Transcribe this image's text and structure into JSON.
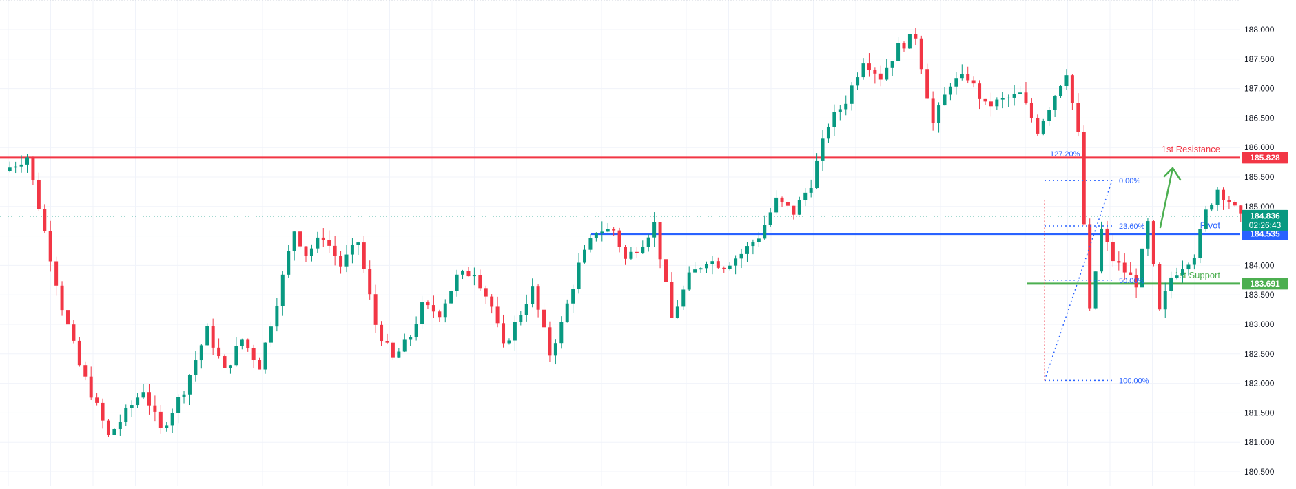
{
  "chart_data": {
    "type": "candlestick",
    "y_axis": {
      "ticks": [
        "188.000",
        "187.500",
        "187.000",
        "186.500",
        "186.000",
        "185.500",
        "185.000",
        "184.500",
        "184.000",
        "183.500",
        "183.000",
        "182.500",
        "182.000",
        "181.500",
        "181.000",
        "180.500"
      ],
      "tick_values": [
        188.0,
        187.5,
        187.0,
        186.5,
        186.0,
        185.5,
        185.0,
        184.5,
        184.0,
        183.5,
        183.0,
        182.5,
        182.0,
        181.5,
        181.0,
        180.5
      ],
      "ylim": [
        180.35,
        188.25
      ],
      "position": "right"
    },
    "grid": true,
    "levels": [
      {
        "name": "resistance",
        "label": "1st Resistance",
        "value": 185.828,
        "value_text": "185.828",
        "color": "#f23645"
      },
      {
        "name": "pivot",
        "label": "Pivot",
        "value": 184.535,
        "value_text": "184.535",
        "color": "#2962ff"
      },
      {
        "name": "support",
        "label": "1st Support",
        "value": 183.691,
        "value_text": "183.691",
        "color": "#4caf50"
      }
    ],
    "current_price": {
      "value": 184.836,
      "value_text": "184.836",
      "countdown": "02:26:43",
      "color": "#089981"
    },
    "fibonacci": [
      {
        "label": "127.20%",
        "value": 185.9
      },
      {
        "label": "0.00%",
        "value": 185.44
      },
      {
        "label": "23.60%",
        "value": 184.67
      },
      {
        "label": "50.00%",
        "value": 183.75
      },
      {
        "label": "100.00%",
        "value": 182.05
      }
    ],
    "candle_colors": {
      "up": "#089981",
      "down": "#f23645"
    },
    "price_path_anchors": [
      [
        0,
        185.6
      ],
      [
        4,
        185.85
      ],
      [
        6,
        185.0
      ],
      [
        10,
        183.3
      ],
      [
        13,
        182.3
      ],
      [
        16,
        181.6
      ],
      [
        18,
        181.1
      ],
      [
        21,
        181.5
      ],
      [
        24,
        181.9
      ],
      [
        27,
        181.2
      ],
      [
        31,
        181.9
      ],
      [
        35,
        182.9
      ],
      [
        38,
        182.2
      ],
      [
        41,
        182.75
      ],
      [
        44,
        182.3
      ],
      [
        47,
        183.4
      ],
      [
        50,
        184.6
      ],
      [
        52,
        184.2
      ],
      [
        55,
        184.5
      ],
      [
        58,
        184.0
      ],
      [
        61,
        184.4
      ],
      [
        64,
        183.0
      ],
      [
        67,
        182.4
      ],
      [
        70,
        182.8
      ],
      [
        72,
        183.3
      ],
      [
        75,
        183.2
      ],
      [
        78,
        183.8
      ],
      [
        81,
        183.9
      ],
      [
        84,
        183.3
      ],
      [
        86,
        182.6
      ],
      [
        88,
        183.0
      ],
      [
        91,
        183.6
      ],
      [
        94,
        182.5
      ],
      [
        96,
        183.0
      ],
      [
        99,
        184.0
      ],
      [
        102,
        184.6
      ],
      [
        105,
        184.6
      ],
      [
        107,
        184.1
      ],
      [
        110,
        184.4
      ],
      [
        112,
        184.7
      ],
      [
        115,
        183.1
      ],
      [
        118,
        183.8
      ],
      [
        121,
        184.1
      ],
      [
        124,
        184.0
      ],
      [
        127,
        184.2
      ],
      [
        130,
        184.5
      ],
      [
        133,
        185.1
      ],
      [
        136,
        184.9
      ],
      [
        139,
        185.4
      ],
      [
        142,
        186.4
      ],
      [
        145,
        186.8
      ],
      [
        148,
        187.5
      ],
      [
        151,
        187.2
      ],
      [
        154,
        187.7
      ],
      [
        157,
        187.9
      ],
      [
        160,
        186.4
      ],
      [
        163,
        187.1
      ],
      [
        166,
        187.2
      ],
      [
        169,
        186.7
      ],
      [
        172,
        186.8
      ],
      [
        175,
        186.9
      ],
      [
        178,
        186.3
      ],
      [
        181,
        186.9
      ],
      [
        183,
        187.3
      ],
      [
        185,
        186.2
      ],
      [
        187,
        183.2
      ],
      [
        189,
        184.6
      ],
      [
        191,
        184.1
      ],
      [
        193,
        183.9
      ],
      [
        195,
        183.7
      ],
      [
        197,
        184.7
      ],
      [
        199,
        183.2
      ],
      [
        201,
        183.8
      ],
      [
        203,
        184.0
      ],
      [
        205,
        184.2
      ],
      [
        207,
        184.9
      ],
      [
        209,
        185.3
      ],
      [
        211,
        185.1
      ],
      [
        213,
        184.8
      ]
    ]
  }
}
